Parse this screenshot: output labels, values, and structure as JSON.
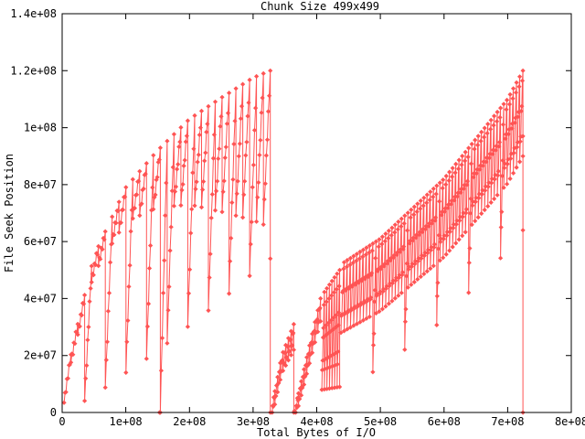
{
  "chart_data": {
    "type": "line",
    "title": "Chunk Size 499x499",
    "xlabel": "Total Bytes of I/O",
    "ylabel": "File Seek Position",
    "xlim": [
      0,
      800000000
    ],
    "ylim": [
      0,
      140000000
    ],
    "grid": false,
    "legend": "none",
    "marker": "diamond",
    "series_color": "#ff5454",
    "axis_color": "#000000",
    "x_tick_labels": [
      "0",
      "1e+08",
      "2e+08",
      "3e+08",
      "4e+08",
      "5e+08",
      "6e+08",
      "7e+08",
      "8e+08"
    ],
    "y_tick_labels": [
      "0",
      "2e+07",
      "4e+07",
      "6e+07",
      "8e+07",
      "1e+08",
      "1.2e+08",
      "1.4e+08"
    ],
    "description": "File seek position vs total I/O bytes; two sawtooth ramps 0-3.27e8 and 3.3e8-7.24e8 each rising to 1.2e8 then seeking back to 0; full-height seek lines at 1.53e8 and 7.24e8",
    "pattern": {
      "segments": [
        {
          "x0": 3000000,
          "x1": 327000000,
          "n": 31,
          "climb": 7,
          "zz": 1100000,
          "top": [
            [
              0,
              1000000
            ],
            [
              15000000,
              22000000
            ],
            [
              50000000,
              55000000
            ],
            [
              100000000,
              79000000
            ],
            [
              150000000,
              92000000
            ],
            [
              200000000,
              103000000
            ],
            [
              250000000,
              110500000
            ],
            [
              300000000,
              117500000
            ],
            [
              327000000,
              120000000
            ]
          ],
          "dep": [
            [
              0,
              1500000
            ],
            [
              50000000,
              6000000
            ],
            [
              100000000,
              12000000
            ],
            [
              150000000,
              20000000
            ],
            [
              200000000,
              30000000
            ],
            [
              250000000,
              40000000
            ],
            [
              300000000,
              50000000
            ],
            [
              327000000,
              55000000
            ]
          ],
          "deep_every": 3,
          "deep_bot": [
            0.06,
            0.45
          ],
          "zero_drops": [
            153000000
          ],
          "end_zero": true
        },
        {
          "x0": 330000000,
          "x1": 364000000,
          "n": 9,
          "climb": 5,
          "zz": 900000,
          "top": [
            [
              330000000,
              2500000
            ],
            [
              345000000,
              20000000
            ],
            [
              364000000,
              31000000
            ]
          ],
          "dep": [
            [
              330000000,
              4000000
            ],
            [
              364000000,
              9000000
            ]
          ],
          "end_zero": true
        },
        {
          "x0": 367000000,
          "x1": 406000000,
          "n": 10,
          "climb": 5,
          "zz": 1000000,
          "top": [
            [
              367000000,
              2500000
            ],
            [
              385000000,
              20000000
            ],
            [
              406000000,
              40000000
            ]
          ],
          "dep": [
            [
              367000000,
              4000000
            ],
            [
              406000000,
              8000000
            ]
          ]
        },
        {
          "x0": 408000000,
          "x1": 436000000,
          "n": 8,
          "climb": 6,
          "zz": 1200000,
          "top": [
            [
              408000000,
              41000000
            ],
            [
              436000000,
              50000000
            ]
          ],
          "dep": [
            [
              408000000,
              33000000
            ],
            [
              436000000,
              41000000
            ]
          ]
        },
        {
          "x0": 438000000,
          "x1": 724000000,
          "n": 58,
          "climb": 6,
          "zz": 1800000,
          "top": [
            [
              438000000,
              52000000
            ],
            [
              500000000,
              61000000
            ],
            [
              600000000,
              82000000
            ],
            [
              700000000,
              110000000
            ],
            [
              724000000,
              120000000
            ]
          ],
          "dep": [
            [
              438000000,
              24000000
            ],
            [
              724000000,
              30000000
            ]
          ],
          "deep_every": 10,
          "deep_factor": 1.8,
          "end_zero": true
        }
      ],
      "extra_points": [
        [
          153000000,
          0
        ],
        [
          327000000,
          0
        ],
        [
          365000000,
          500000
        ],
        [
          724000000,
          97000000
        ],
        [
          724000000,
          64000000
        ],
        [
          724000000,
          0
        ]
      ]
    }
  }
}
